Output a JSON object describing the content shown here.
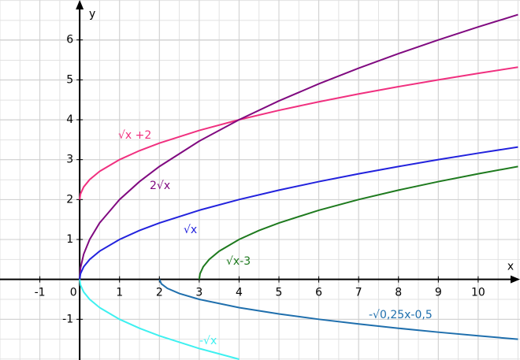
{
  "chart_data": {
    "type": "line",
    "xlabel": "x",
    "ylabel": "y",
    "xlim": [
      -2,
      11.05
    ],
    "ylim": [
      -2.02,
      7.0
    ],
    "xticks": [
      -1,
      0,
      1,
      2,
      3,
      4,
      5,
      6,
      7,
      8,
      9,
      10
    ],
    "yticks": [
      -1,
      1,
      2,
      3,
      4,
      5,
      6
    ],
    "grid": true,
    "series": [
      {
        "name": "√x +2",
        "color": "#f0307f",
        "x": [
          0,
          0.02,
          0.1,
          0.25,
          0.5,
          1,
          1.5,
          2,
          3,
          4,
          5,
          6,
          7,
          8,
          9,
          10,
          11
        ],
        "values": [
          2,
          2.141,
          2.316,
          2.5,
          2.707,
          3,
          3.225,
          3.414,
          3.732,
          4,
          4.236,
          4.449,
          4.646,
          4.828,
          5,
          5.162,
          5.317
        ]
      },
      {
        "name": "2√x",
        "color": "#800a80",
        "x": [
          0,
          0.02,
          0.1,
          0.25,
          0.5,
          1,
          1.5,
          2,
          3,
          4,
          5,
          6,
          7,
          8,
          9,
          10,
          11
        ],
        "values": [
          0,
          0.283,
          0.632,
          1,
          1.414,
          2,
          2.449,
          2.828,
          3.464,
          4,
          4.472,
          4.899,
          5.292,
          5.657,
          6,
          6.325,
          6.633
        ]
      },
      {
        "name": "√x",
        "color": "#2222dd",
        "x": [
          0,
          0.02,
          0.1,
          0.25,
          0.5,
          1,
          1.5,
          2,
          3,
          4,
          5,
          6,
          7,
          8,
          9,
          10,
          11
        ],
        "values": [
          0,
          0.141,
          0.316,
          0.5,
          0.707,
          1,
          1.225,
          1.414,
          1.732,
          2,
          2.236,
          2.449,
          2.646,
          2.828,
          3,
          3.162,
          3.317
        ]
      },
      {
        "name": "√x-3",
        "color": "#1e7a1e",
        "x": [
          3,
          3.02,
          3.1,
          3.25,
          3.5,
          4,
          4.5,
          5,
          6,
          7,
          8,
          9,
          10,
          11
        ],
        "values": [
          0,
          0.141,
          0.316,
          0.5,
          0.707,
          1,
          1.225,
          1.414,
          1.732,
          2,
          2.236,
          2.449,
          2.646,
          2.828
        ]
      },
      {
        "name": "-√0,25x-0,5",
        "color": "#1f6fad",
        "x": [
          2,
          2.05,
          2.2,
          2.5,
          3,
          4,
          5,
          6,
          7,
          8,
          9,
          10,
          11
        ],
        "values": [
          0,
          -0.112,
          -0.224,
          -0.354,
          -0.5,
          -0.707,
          -0.866,
          -1,
          -1.118,
          -1.225,
          -1.323,
          -1.414,
          -1.5
        ]
      },
      {
        "name": "-√x",
        "color": "#3ef0f0",
        "x": [
          0,
          0.02,
          0.1,
          0.25,
          0.5,
          1,
          1.5,
          2,
          3,
          4
        ],
        "values": [
          0,
          -0.141,
          -0.316,
          -0.5,
          -0.707,
          -1,
          -1.225,
          -1.414,
          -1.732,
          -2
        ]
      }
    ]
  }
}
